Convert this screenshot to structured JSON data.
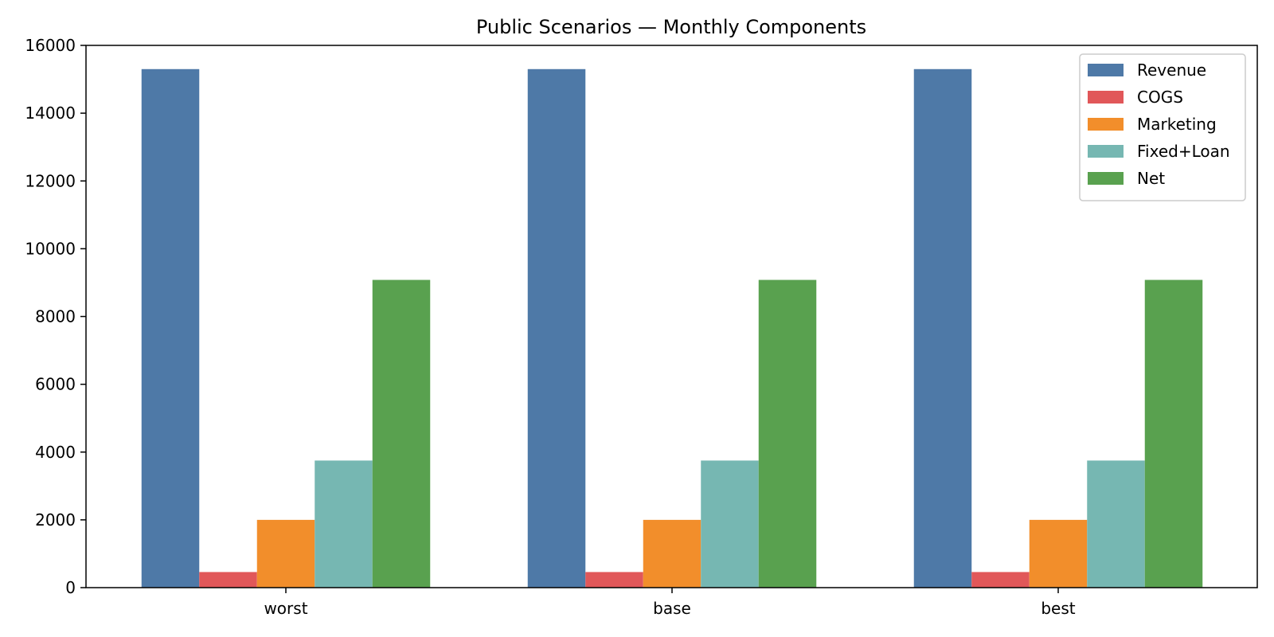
{
  "chart_data": {
    "type": "bar",
    "title": "Public Scenarios — Monthly Components",
    "xlabel": "",
    "ylabel": "",
    "categories": [
      "worst",
      "base",
      "best"
    ],
    "series": [
      {
        "name": "Revenue",
        "color": "#4e79a7",
        "values": [
          15300,
          15300,
          15300
        ]
      },
      {
        "name": "COGS",
        "color": "#e15759",
        "values": [
          460,
          460,
          460
        ]
      },
      {
        "name": "Marketing",
        "color": "#f28e2b",
        "values": [
          2000,
          2000,
          2000
        ]
      },
      {
        "name": "Fixed+Loan",
        "color": "#76b7b2",
        "values": [
          3750,
          3750,
          3750
        ]
      },
      {
        "name": "Net",
        "color": "#59a14f",
        "values": [
          9080,
          9080,
          9080
        ]
      }
    ],
    "yticks": [
      "0",
      "2000",
      "4000",
      "6000",
      "8000",
      "10000",
      "12000",
      "14000",
      "16000"
    ],
    "ylim": [
      0,
      16000
    ],
    "grid": false,
    "legend_position": "top-right"
  }
}
